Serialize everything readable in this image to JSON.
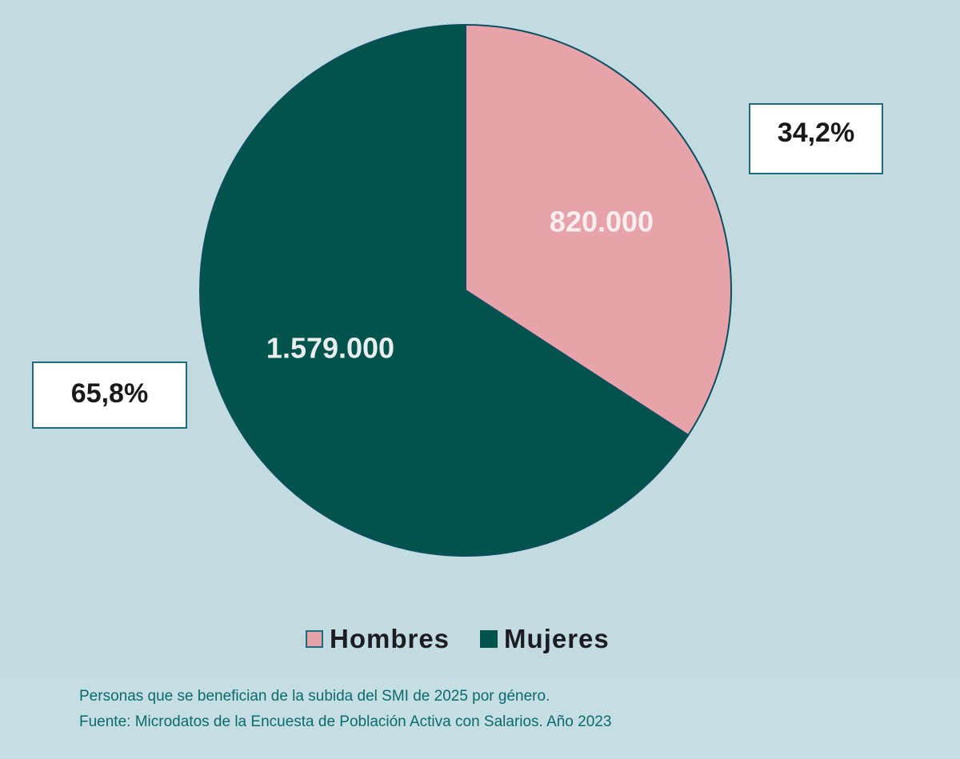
{
  "chart_data": {
    "type": "pie",
    "title": "Personas que se benefician de la subida del SMI de 2025 por género.",
    "source": "Fuente: Microdatos de la Encuesta de Población Activa con Salarios. Año 2023",
    "slices": [
      {
        "label": "Hombres",
        "value": 820000,
        "value_label": "820.000",
        "percent": 34.2,
        "percent_label": "34,2%",
        "color": "#e8a2aa"
      },
      {
        "label": "Mujeres",
        "value": 1579000,
        "value_label": "1.579.000",
        "percent": 65.8,
        "percent_label": "65,8%",
        "color": "#02534b"
      }
    ],
    "legend_position": "bottom"
  }
}
